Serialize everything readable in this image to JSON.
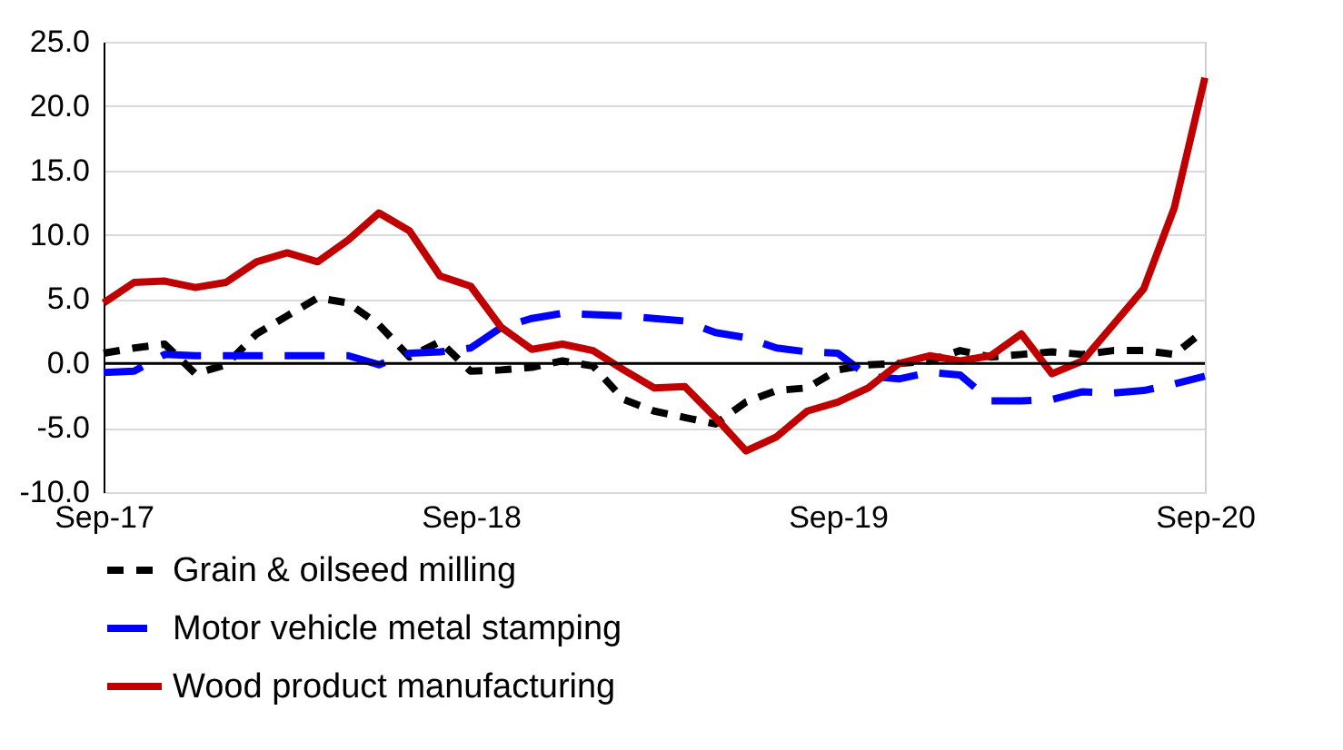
{
  "chart_data": {
    "type": "line",
    "categories": [
      "Sep-17",
      null,
      null,
      null,
      null,
      null,
      null,
      null,
      null,
      null,
      null,
      null,
      "Sep-18",
      null,
      null,
      null,
      null,
      null,
      null,
      null,
      null,
      null,
      null,
      null,
      "Sep-19",
      null,
      null,
      null,
      null,
      null,
      null,
      null,
      null,
      null,
      null,
      null,
      "Sep-20"
    ],
    "series": [
      {
        "name": "Grain & oilseed milling",
        "color": "#000000",
        "line_style": "dashed",
        "values": [
          0.8,
          1.2,
          1.5,
          -0.8,
          -0.1,
          2.3,
          3.7,
          5.1,
          4.7,
          3.0,
          0.5,
          1.7,
          -0.6,
          -0.5,
          -0.3,
          0.2,
          -0.2,
          -2.8,
          -3.7,
          -4.2,
          -4.7,
          -3.0,
          -2.1,
          -1.9,
          -0.5,
          -0.1,
          0.0,
          0.2,
          1.0,
          0.5,
          0.7,
          0.9,
          0.7,
          1.0,
          1.0,
          0.7,
          2.6
        ]
      },
      {
        "name": "Motor vehicle metal stamping",
        "color": "#0000ff",
        "line_style": "longdash",
        "values": [
          -0.7,
          -0.6,
          0.7,
          0.6,
          0.6,
          0.6,
          0.6,
          0.6,
          0.6,
          -0.1,
          0.8,
          0.9,
          1.2,
          2.8,
          3.5,
          3.9,
          3.8,
          3.7,
          3.5,
          3.3,
          2.4,
          2.0,
          1.2,
          0.9,
          0.8,
          -1.0,
          -1.2,
          -0.7,
          -0.9,
          -2.9,
          -2.9,
          -2.8,
          -2.2,
          -2.3,
          -2.1,
          -1.6,
          -1.0
        ]
      },
      {
        "name": "Wood product manufacturing",
        "color": "#c00000",
        "line_style": "solid",
        "values": [
          4.7,
          6.3,
          6.4,
          5.9,
          6.3,
          7.9,
          8.6,
          7.9,
          9.6,
          11.7,
          10.3,
          6.8,
          6.0,
          2.8,
          1.1,
          1.5,
          1.0,
          -0.5,
          -1.9,
          -1.8,
          -4.2,
          -6.8,
          -5.7,
          -3.7,
          -3.0,
          -1.9,
          0.0,
          0.6,
          0.2,
          0.6,
          2.3,
          -0.8,
          0.2,
          3.0,
          5.8,
          12.1,
          22.2
        ]
      }
    ],
    "ylim": [
      -10,
      25
    ],
    "yticks": [
      {
        "value": -10,
        "label": "-10.0"
      },
      {
        "value": -5,
        "label": "-5.0"
      },
      {
        "value": 0,
        "label": "0.0"
      },
      {
        "value": 5,
        "label": "5.0"
      },
      {
        "value": 10,
        "label": "10.0"
      },
      {
        "value": 15,
        "label": "15.0"
      },
      {
        "value": 20,
        "label": "20.0"
      },
      {
        "value": 25,
        "label": "25.0"
      }
    ],
    "ref_lines": [
      {
        "axis": "y",
        "value": 0,
        "color": "#000000"
      }
    ],
    "grid": "y",
    "legend": "bottom"
  }
}
